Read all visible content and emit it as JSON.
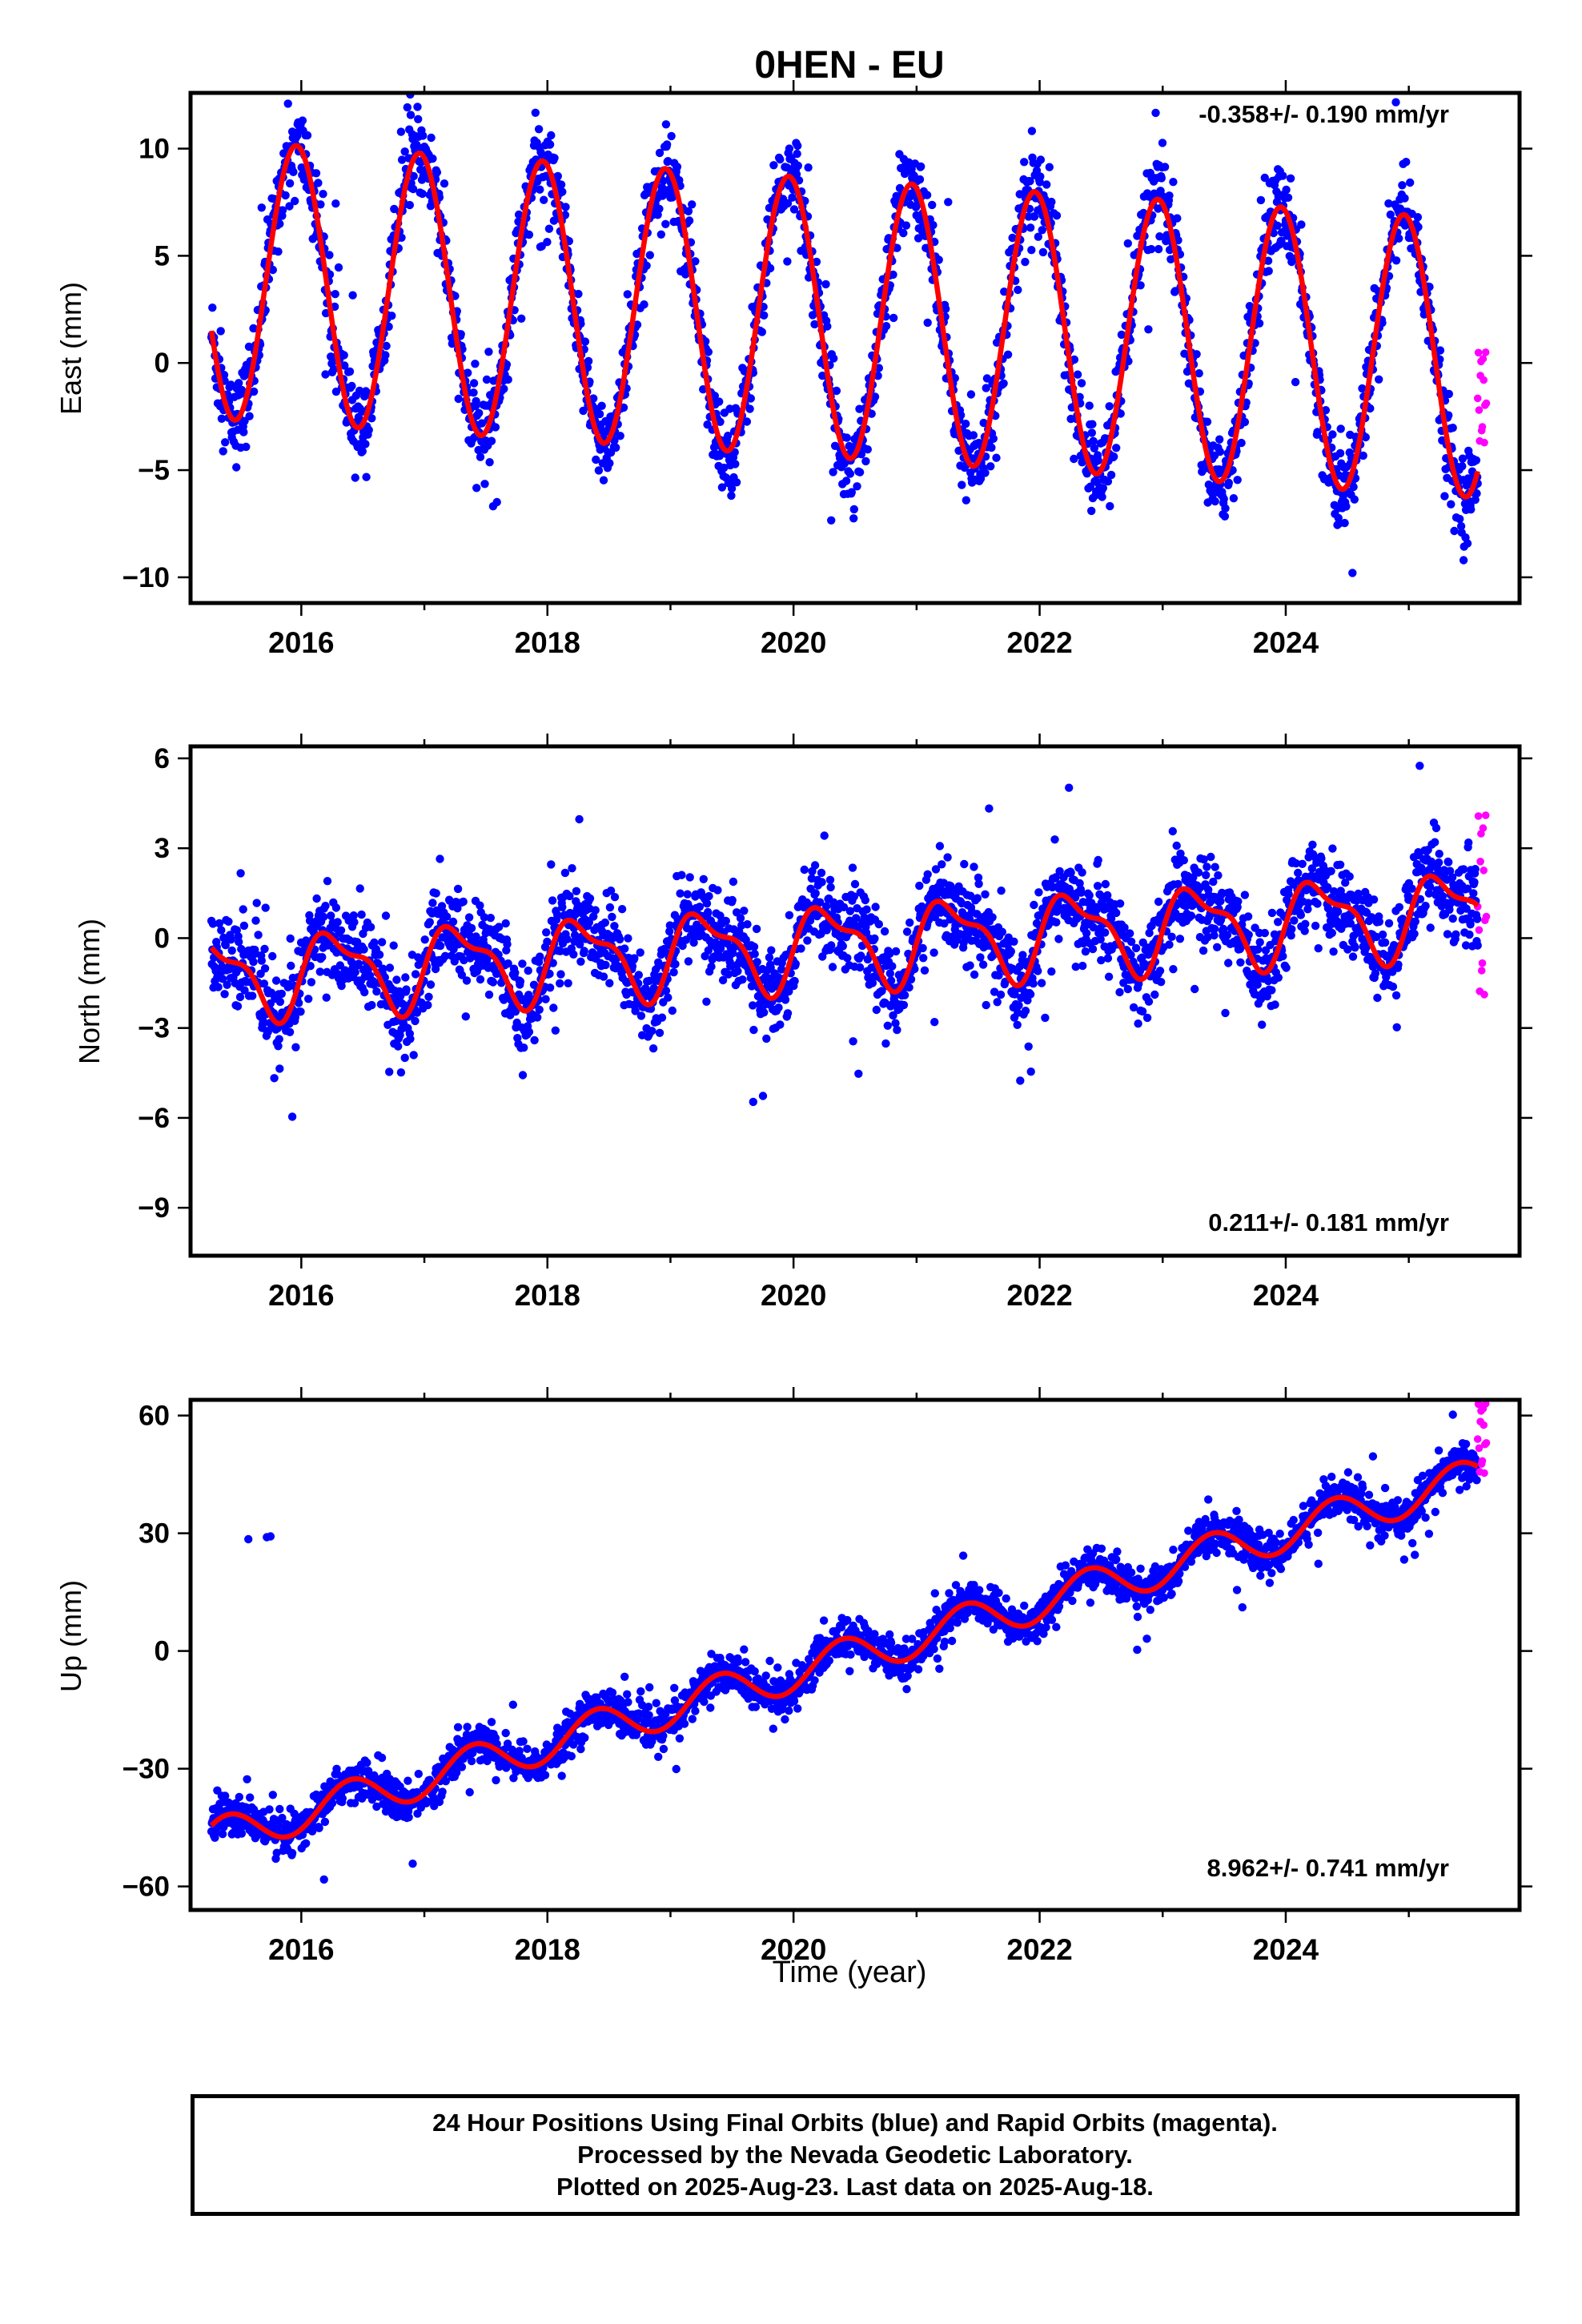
{
  "title": "0HEN - EU",
  "xlabel": "Time (year)",
  "footer": {
    "line1": "24 Hour Positions Using Final Orbits (blue) and Rapid Orbits (magenta).",
    "line2": "Processed by the Nevada Geodetic Laboratory.",
    "line3": "Plotted on 2025-Aug-23. Last data on 2025-Aug-18."
  },
  "colors": {
    "final_points": "#0000ff",
    "rapid_points": "#ff00ff",
    "model_curve": "#ff0000"
  },
  "chart_data": [
    {
      "type": "scatter",
      "panel": "east",
      "ylabel": "East (mm)",
      "rate_text": "-0.358+/- 0.190 mm/yr",
      "xlim": [
        2015.1,
        2025.9
      ],
      "ylim": [
        -11.2,
        12.6
      ],
      "xticks": [
        2016,
        2018,
        2020,
        2022,
        2024
      ],
      "yticks": [
        -10,
        -5,
        0,
        5,
        10
      ],
      "ytick_labels": [
        "−10",
        "−5",
        "0",
        "5",
        "10"
      ],
      "model": {
        "offset": 2.2,
        "rate": -0.358,
        "a1": 6.5,
        "a2": 0.0,
        "t0": 2020.0,
        "ph1": 0.96,
        "ph2": 0.0,
        "scatter": 1.8,
        "curve_start": 2015.27,
        "curve_end": 2025.56
      },
      "series": [
        {
          "name": "Final Orbits (blue)",
          "x_range": [
            2015.27,
            2025.56
          ],
          "color": "#0000ff"
        },
        {
          "name": "Rapid Orbits (magenta)",
          "x_range": [
            2025.56,
            2025.63
          ],
          "y_range": [
            -3.8,
            0.5
          ],
          "color": "#ff00ff"
        }
      ]
    },
    {
      "type": "scatter",
      "panel": "north",
      "ylabel": "North (mm)",
      "rate_text": "0.211+/- 0.181 mm/yr",
      "xlim": [
        2015.1,
        2025.9
      ],
      "ylim": [
        -10.6,
        6.4
      ],
      "xticks": [
        2016,
        2018,
        2020,
        2022,
        2024
      ],
      "yticks": [
        -9,
        -6,
        -3,
        0,
        3,
        6
      ],
      "ytick_labels": [
        "−9",
        "−6",
        "−3",
        "0",
        "3",
        "6"
      ],
      "model": {
        "offset": -0.3,
        "rate": 0.211,
        "a1": 1.25,
        "a2": 0.5,
        "t0": 2020.0,
        "ph1": 0.28,
        "ph2": 0.1,
        "scatter": 1.3,
        "curve_start": 2015.27,
        "curve_end": 2025.56
      },
      "series": [
        {
          "name": "Final Orbits (blue)",
          "x_range": [
            2015.27,
            2025.56
          ],
          "color": "#0000ff"
        },
        {
          "name": "Rapid Orbits (magenta)",
          "x_range": [
            2025.56,
            2025.63
          ],
          "y_range": [
            -2.0,
            4.1
          ],
          "color": "#ff00ff"
        }
      ]
    },
    {
      "type": "scatter",
      "panel": "up",
      "ylabel": "Up (mm)",
      "rate_text": "8.962+/- 0.741 mm/yr",
      "xlim": [
        2015.1,
        2025.9
      ],
      "ylim": [
        -66,
        64
      ],
      "xticks": [
        2016,
        2018,
        2020,
        2022,
        2024
      ],
      "yticks": [
        -60,
        -30,
        0,
        30,
        60
      ],
      "ytick_labels": [
        "−60",
        "−30",
        "0",
        "30",
        "60"
      ],
      "model": {
        "offset": -5.5,
        "rate": 8.962,
        "a1": 5.0,
        "a2": 0.0,
        "t0": 2020.0,
        "ph1": 0.4,
        "ph2": 0.0,
        "scatter": 4.5,
        "curve_start": 2015.27,
        "curve_end": 2025.56
      },
      "series": [
        {
          "name": "Final Orbits (blue)",
          "x_range": [
            2015.27,
            2025.56
          ],
          "color": "#0000ff"
        },
        {
          "name": "Rapid Orbits (magenta)",
          "x_range": [
            2025.56,
            2025.63
          ],
          "y_range": [
            45,
            63
          ],
          "color": "#ff00ff"
        }
      ],
      "outliers": [
        [
          2015.57,
          28.5
        ],
        [
          2015.72,
          29.0
        ],
        [
          2015.75,
          29.2
        ]
      ]
    }
  ]
}
